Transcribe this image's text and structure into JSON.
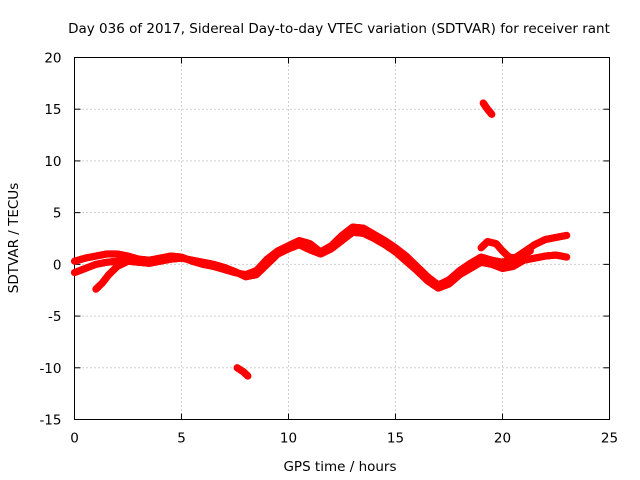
{
  "chart_data": {
    "type": "scatter",
    "title": "Day 036 of 2017, Sidereal Day-to-day VTEC variation (SDTVAR) for receiver rant",
    "xlabel": "GPS time / hours",
    "ylabel": "SDTVAR / TECUs",
    "xlim": [
      0,
      25
    ],
    "ylim": [
      -15,
      20
    ],
    "xticks": [
      0,
      5,
      10,
      15,
      20,
      25
    ],
    "yticks": [
      -15,
      -10,
      -5,
      0,
      5,
      10,
      15,
      20
    ],
    "grid": true,
    "color": "#ff0000",
    "series": [
      {
        "name": "main-trace-1",
        "x": [
          0.0,
          0.5,
          1.0,
          1.5,
          2.0,
          2.5,
          3.0,
          3.5,
          4.0,
          4.5,
          5.0,
          5.5,
          6.0,
          6.5,
          7.0,
          7.5,
          8.0,
          8.5,
          9.0,
          9.5,
          10.0,
          10.5,
          11.0,
          11.5,
          12.0,
          12.5,
          13.0,
          13.5,
          14.0,
          14.5,
          15.0,
          15.5,
          16.0,
          16.5,
          17.0,
          17.5,
          18.0,
          18.5,
          19.0,
          19.5,
          20.0,
          20.5,
          21.0,
          21.5,
          22.0,
          22.5,
          23.0
        ],
        "y": [
          0.3,
          0.6,
          0.8,
          1.0,
          1.0,
          0.8,
          0.5,
          0.4,
          0.6,
          0.8,
          0.7,
          0.3,
          0.0,
          -0.2,
          -0.5,
          -0.8,
          -1.0,
          -0.6,
          0.5,
          1.3,
          1.8,
          2.3,
          2.0,
          1.2,
          1.8,
          2.8,
          3.6,
          3.5,
          2.9,
          2.3,
          1.6,
          0.8,
          -0.2,
          -1.2,
          -2.0,
          -1.5,
          -0.6,
          0.1,
          0.7,
          0.4,
          0.2,
          0.5,
          1.2,
          1.9,
          2.4,
          2.6,
          2.8
        ]
      },
      {
        "name": "main-trace-2",
        "x": [
          0.0,
          0.5,
          1.0,
          1.5,
          2.0,
          2.5,
          3.0,
          3.5,
          4.0,
          4.5,
          5.0,
          5.5,
          6.0,
          6.5,
          7.0,
          7.5,
          8.0,
          8.5,
          9.0,
          9.5,
          10.0,
          10.5,
          11.0,
          11.5,
          12.0,
          12.5,
          13.0,
          13.5,
          14.0,
          14.5,
          15.0,
          15.5,
          16.0,
          16.5,
          17.0,
          17.5,
          18.0,
          18.5,
          19.0,
          19.5,
          20.0,
          20.5,
          21.0,
          21.5,
          22.0,
          22.5,
          23.0
        ],
        "y": [
          -0.8,
          -0.4,
          0.0,
          0.2,
          0.3,
          0.3,
          0.2,
          0.1,
          0.3,
          0.5,
          0.6,
          0.4,
          0.2,
          0.0,
          -0.3,
          -0.7,
          -1.2,
          -1.0,
          0.0,
          1.0,
          1.5,
          1.9,
          1.4,
          1.0,
          1.5,
          2.3,
          3.1,
          3.0,
          2.5,
          1.9,
          1.2,
          0.3,
          -0.6,
          -1.6,
          -2.3,
          -1.9,
          -1.0,
          -0.4,
          0.2,
          0.0,
          -0.4,
          -0.2,
          0.4,
          0.6,
          0.8,
          0.9,
          0.7
        ]
      },
      {
        "name": "early-arc",
        "x": [
          1.0,
          1.3,
          1.6,
          2.0,
          2.5
        ],
        "y": [
          -2.4,
          -1.8,
          -1.0,
          -0.2,
          0.3
        ]
      },
      {
        "name": "late-loop",
        "x": [
          19.0,
          19.3,
          19.7,
          20.0,
          20.3,
          20.6,
          21.0,
          21.3
        ],
        "y": [
          1.6,
          2.2,
          2.0,
          1.3,
          0.7,
          0.6,
          1.0,
          1.3
        ]
      },
      {
        "name": "outlier-upper",
        "x": [
          19.1,
          19.3,
          19.5
        ],
        "y": [
          15.6,
          15.0,
          14.5
        ]
      },
      {
        "name": "outlier-lower",
        "x": [
          7.6,
          7.9,
          8.1
        ],
        "y": [
          -10.0,
          -10.4,
          -10.8
        ]
      }
    ]
  }
}
